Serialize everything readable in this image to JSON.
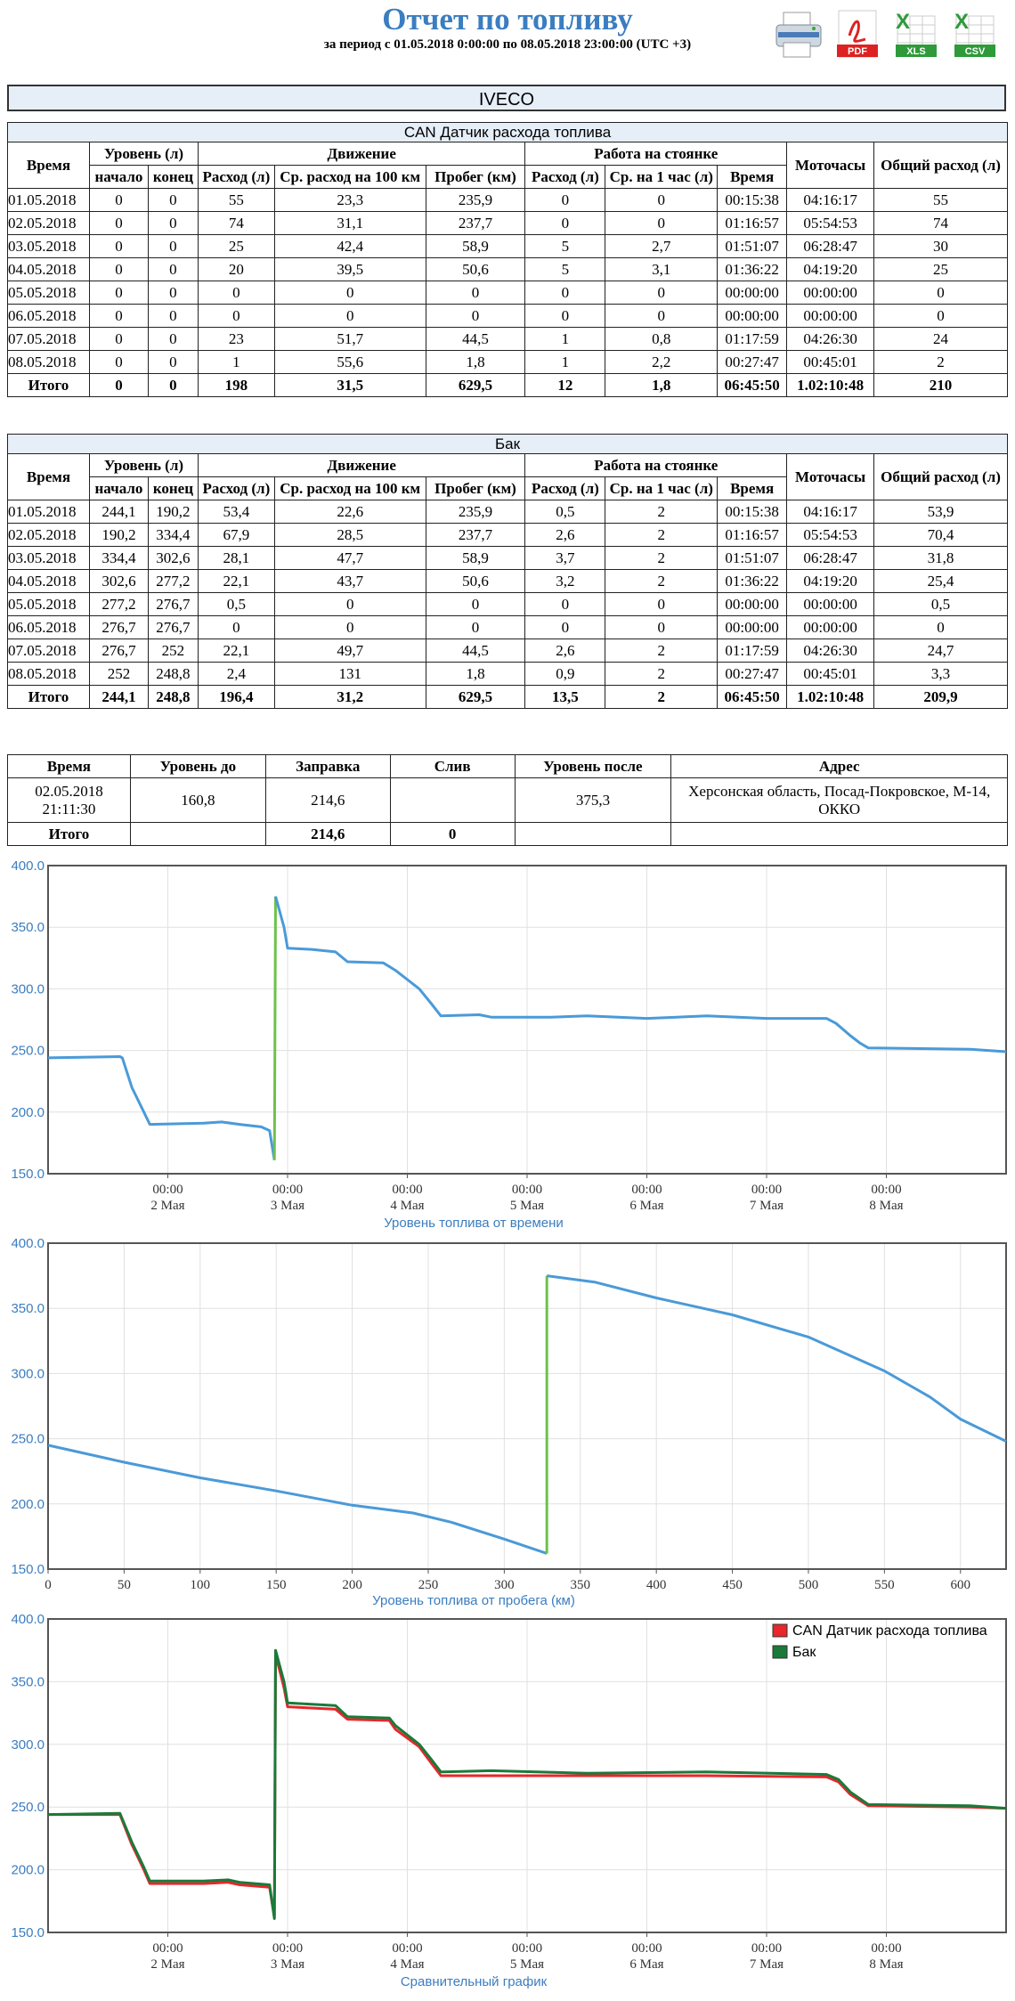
{
  "header": {
    "title": "Отчет по топливу",
    "subtitle": "за период с 01.05.2018 0:00:00 по 08.05.2018 23:00:00 (UTC +3)",
    "icons": [
      "print-icon",
      "pdf-icon",
      "xls-icon",
      "csv-icon"
    ],
    "pdf_label": "PDF",
    "xls_label": "XLS",
    "csv_label": "CSV"
  },
  "vehicle": "IVECO",
  "headers": {
    "time": "Время",
    "level": "Уровень (л)",
    "start": "начало",
    "end": "конец",
    "movement": "Движение",
    "consumption": "Расход (л)",
    "avg_100": "Ср. расход на 100 км",
    "mileage": "Пробег (км)",
    "parking": "Работа на стоянке",
    "cons": "Расход (л)",
    "avg_hour": "Ср. на 1 час (л)",
    "ptime": "Время",
    "moto": "Моточасы",
    "total": "Общий расход (л)"
  },
  "can": {
    "caption": "CAN Датчик расхода топлива",
    "rows": [
      [
        "01.05.2018",
        "0",
        "0",
        "55",
        "23,3",
        "235,9",
        "0",
        "0",
        "00:15:38",
        "04:16:17",
        "55"
      ],
      [
        "02.05.2018",
        "0",
        "0",
        "74",
        "31,1",
        "237,7",
        "0",
        "0",
        "01:16:57",
        "05:54:53",
        "74"
      ],
      [
        "03.05.2018",
        "0",
        "0",
        "25",
        "42,4",
        "58,9",
        "5",
        "2,7",
        "01:51:07",
        "06:28:47",
        "30"
      ],
      [
        "04.05.2018",
        "0",
        "0",
        "20",
        "39,5",
        "50,6",
        "5",
        "3,1",
        "01:36:22",
        "04:19:20",
        "25"
      ],
      [
        "05.05.2018",
        "0",
        "0",
        "0",
        "0",
        "0",
        "0",
        "0",
        "00:00:00",
        "00:00:00",
        "0"
      ],
      [
        "06.05.2018",
        "0",
        "0",
        "0",
        "0",
        "0",
        "0",
        "0",
        "00:00:00",
        "00:00:00",
        "0"
      ],
      [
        "07.05.2018",
        "0",
        "0",
        "23",
        "51,7",
        "44,5",
        "1",
        "0,8",
        "01:17:59",
        "04:26:30",
        "24"
      ],
      [
        "08.05.2018",
        "0",
        "0",
        "1",
        "55,6",
        "1,8",
        "1",
        "2,2",
        "00:27:47",
        "00:45:01",
        "2"
      ]
    ],
    "total": [
      "Итого",
      "0",
      "0",
      "198",
      "31,5",
      "629,5",
      "12",
      "1,8",
      "06:45:50",
      "1.02:10:48",
      "210"
    ]
  },
  "tank": {
    "caption": "Бак",
    "rows": [
      [
        "01.05.2018",
        "244,1",
        "190,2",
        "53,4",
        "22,6",
        "235,9",
        "0,5",
        "2",
        "00:15:38",
        "04:16:17",
        "53,9"
      ],
      [
        "02.05.2018",
        "190,2",
        "334,4",
        "67,9",
        "28,5",
        "237,7",
        "2,6",
        "2",
        "01:16:57",
        "05:54:53",
        "70,4"
      ],
      [
        "03.05.2018",
        "334,4",
        "302,6",
        "28,1",
        "47,7",
        "58,9",
        "3,7",
        "2",
        "01:51:07",
        "06:28:47",
        "31,8"
      ],
      [
        "04.05.2018",
        "302,6",
        "277,2",
        "22,1",
        "43,7",
        "50,6",
        "3,2",
        "2",
        "01:36:22",
        "04:19:20",
        "25,4"
      ],
      [
        "05.05.2018",
        "277,2",
        "276,7",
        "0,5",
        "0",
        "0",
        "0",
        "0",
        "00:00:00",
        "00:00:00",
        "0,5"
      ],
      [
        "06.05.2018",
        "276,7",
        "276,7",
        "0",
        "0",
        "0",
        "0",
        "0",
        "00:00:00",
        "00:00:00",
        "0"
      ],
      [
        "07.05.2018",
        "276,7",
        "252",
        "22,1",
        "49,7",
        "44,5",
        "2,6",
        "2",
        "01:17:59",
        "04:26:30",
        "24,7"
      ],
      [
        "08.05.2018",
        "252",
        "248,8",
        "2,4",
        "131",
        "1,8",
        "0,9",
        "2",
        "00:27:47",
        "00:45:01",
        "3,3"
      ]
    ],
    "total": [
      "Итого",
      "244,1",
      "248,8",
      "196,4",
      "31,2",
      "629,5",
      "13,5",
      "2",
      "06:45:50",
      "1.02:10:48",
      "209,9"
    ]
  },
  "refuel": {
    "headers": [
      "Время",
      "Уровень до",
      "Заправка",
      "Слив",
      "Уровень после",
      "Адрес"
    ],
    "row": {
      "time": "02.05.2018 21:11:30",
      "before": "160,8",
      "refuel": "214,6",
      "drain": "",
      "after": "375,3",
      "address": "Херсонская область, Посад-Покровское, М-14, ОККО"
    },
    "total": {
      "label": "Итого",
      "refuel": "214,6",
      "drain": "0"
    }
  },
  "chart_data": [
    {
      "type": "line",
      "title": "Уровень топлива от времени",
      "xlabel": "Уровень топлива от времени",
      "ylabel": "",
      "ylim": [
        150,
        400
      ],
      "yticks": [
        "150.0",
        "200.0",
        "250.0",
        "300.0",
        "350.0",
        "400.0"
      ],
      "xticks": [
        {
          "time": "00:00",
          "date": "2 Мая"
        },
        {
          "time": "00:00",
          "date": "3 Мая"
        },
        {
          "time": "00:00",
          "date": "4 Мая"
        },
        {
          "time": "00:00",
          "date": "5 Мая"
        },
        {
          "time": "00:00",
          "date": "6 Мая"
        },
        {
          "time": "00:00",
          "date": "7 Мая"
        },
        {
          "time": "00:00",
          "date": "8 Мая"
        }
      ],
      "xlim_days": [
        1.0,
        9.0
      ],
      "grid": true,
      "colors": {
        "line": "#4a9ad8",
        "refuel": "#6cc24a"
      },
      "series": [
        {
          "points": [
            [
              1.0,
              244
            ],
            [
              1.6,
              245
            ],
            [
              1.62,
              244
            ],
            [
              1.7,
              220
            ],
            [
              1.8,
              200
            ],
            [
              1.85,
              190
            ],
            [
              2.3,
              191
            ],
            [
              2.45,
              192
            ],
            [
              2.6,
              190
            ],
            [
              2.78,
              188
            ],
            [
              2.85,
              185
            ],
            [
              2.89,
              161
            ]
          ]
        },
        {
          "refuel": true,
          "points": [
            [
              2.89,
              161
            ],
            [
              2.9,
              375
            ]
          ]
        },
        {
          "points": [
            [
              2.9,
              375
            ],
            [
              2.97,
              350
            ],
            [
              3.0,
              333
            ],
            [
              3.2,
              332
            ],
            [
              3.4,
              330
            ],
            [
              3.5,
              322
            ],
            [
              3.8,
              321
            ],
            [
              3.9,
              315
            ],
            [
              4.1,
              300
            ],
            [
              4.2,
              288
            ],
            [
              4.28,
              278
            ],
            [
              4.6,
              279
            ],
            [
              4.7,
              277
            ],
            [
              5.2,
              277
            ],
            [
              5.5,
              278
            ],
            [
              6.0,
              276
            ],
            [
              6.5,
              278
            ],
            [
              7.0,
              276
            ],
            [
              7.5,
              276
            ],
            [
              7.58,
              272
            ],
            [
              7.7,
              262
            ],
            [
              7.78,
              256
            ],
            [
              7.85,
              252
            ],
            [
              8.7,
              251
            ],
            [
              9.0,
              249
            ]
          ]
        }
      ]
    },
    {
      "type": "line",
      "title": "Уровень топлива от пробега (км)",
      "xlabel": "Уровень топлива от пробега (км)",
      "ylabel": "",
      "xlim": [
        0,
        630
      ],
      "ylim": [
        150,
        400
      ],
      "yticks": [
        "150.0",
        "200.0",
        "250.0",
        "300.0",
        "350.0",
        "400.0"
      ],
      "xticks": [
        "0",
        "50",
        "100",
        "150",
        "200",
        "250",
        "300",
        "350",
        "400",
        "450",
        "500",
        "550",
        "600"
      ],
      "grid": true,
      "colors": {
        "line": "#4a9ad8",
        "refuel": "#6cc24a"
      },
      "series": [
        {
          "points": [
            [
              0,
              245
            ],
            [
              50,
              232
            ],
            [
              100,
              220
            ],
            [
              150,
              210
            ],
            [
              200,
              199
            ],
            [
              240,
              193
            ],
            [
              265,
              186
            ],
            [
              300,
              173
            ],
            [
              328,
              162
            ]
          ]
        },
        {
          "refuel": true,
          "points": [
            [
              328,
              162
            ],
            [
              328,
              375
            ]
          ]
        },
        {
          "points": [
            [
              328,
              375
            ],
            [
              360,
              370
            ],
            [
              400,
              358
            ],
            [
              450,
              345
            ],
            [
              500,
              328
            ],
            [
              550,
              302
            ],
            [
              580,
              282
            ],
            [
              600,
              265
            ],
            [
              630,
              248
            ]
          ]
        }
      ]
    },
    {
      "type": "line",
      "title": "Сравнительный график",
      "xlabel": "Сравнительный график",
      "ylabel": "",
      "ylim": [
        150,
        400
      ],
      "yticks": [
        "150.0",
        "200.0",
        "250.0",
        "300.0",
        "350.0",
        "400.0"
      ],
      "xticks": [
        {
          "time": "00:00",
          "date": "2 Мая"
        },
        {
          "time": "00:00",
          "date": "3 Мая"
        },
        {
          "time": "00:00",
          "date": "4 Мая"
        },
        {
          "time": "00:00",
          "date": "5 Мая"
        },
        {
          "time": "00:00",
          "date": "6 Мая"
        },
        {
          "time": "00:00",
          "date": "7 Мая"
        },
        {
          "time": "00:00",
          "date": "8 Мая"
        }
      ],
      "xlim_days": [
        1.0,
        9.0
      ],
      "grid": true,
      "legend_position": "top-right",
      "series": [
        {
          "name": "CAN Датчик расхода топлива",
          "color": "#e8262b",
          "points": [
            [
              1.0,
              244
            ],
            [
              1.6,
              244
            ],
            [
              1.7,
              220
            ],
            [
              1.8,
              200
            ],
            [
              1.85,
              189
            ],
            [
              2.3,
              189
            ],
            [
              2.5,
              190
            ],
            [
              2.6,
              188
            ],
            [
              2.85,
              186
            ],
            [
              2.89,
              162
            ],
            [
              2.9,
              372
            ],
            [
              2.97,
              345
            ],
            [
              3.0,
              330
            ],
            [
              3.4,
              328
            ],
            [
              3.5,
              320
            ],
            [
              3.85,
              319
            ],
            [
              3.9,
              312
            ],
            [
              4.1,
              298
            ],
            [
              4.2,
              285
            ],
            [
              4.28,
              275
            ],
            [
              4.7,
              275
            ],
            [
              5.5,
              275
            ],
            [
              6.5,
              275
            ],
            [
              7.5,
              274
            ],
            [
              7.6,
              270
            ],
            [
              7.7,
              260
            ],
            [
              7.85,
              251
            ],
            [
              8.7,
              250
            ],
            [
              9.0,
              249
            ]
          ]
        },
        {
          "name": "Бак",
          "color": "#1a7a3a",
          "points": [
            [
              1.0,
              244
            ],
            [
              1.6,
              245
            ],
            [
              1.7,
              222
            ],
            [
              1.8,
              202
            ],
            [
              1.85,
              191
            ],
            [
              2.3,
              191
            ],
            [
              2.5,
              192
            ],
            [
              2.6,
              190
            ],
            [
              2.85,
              188
            ],
            [
              2.89,
              161
            ],
            [
              2.9,
              375
            ],
            [
              2.97,
              350
            ],
            [
              3.0,
              333
            ],
            [
              3.4,
              331
            ],
            [
              3.5,
              322
            ],
            [
              3.85,
              321
            ],
            [
              3.9,
              315
            ],
            [
              4.1,
              300
            ],
            [
              4.2,
              288
            ],
            [
              4.28,
              278
            ],
            [
              4.7,
              279
            ],
            [
              5.5,
              277
            ],
            [
              6.5,
              278
            ],
            [
              7.5,
              276
            ],
            [
              7.6,
              272
            ],
            [
              7.7,
              262
            ],
            [
              7.85,
              252
            ],
            [
              8.7,
              251
            ],
            [
              9.0,
              249
            ]
          ]
        }
      ]
    }
  ]
}
